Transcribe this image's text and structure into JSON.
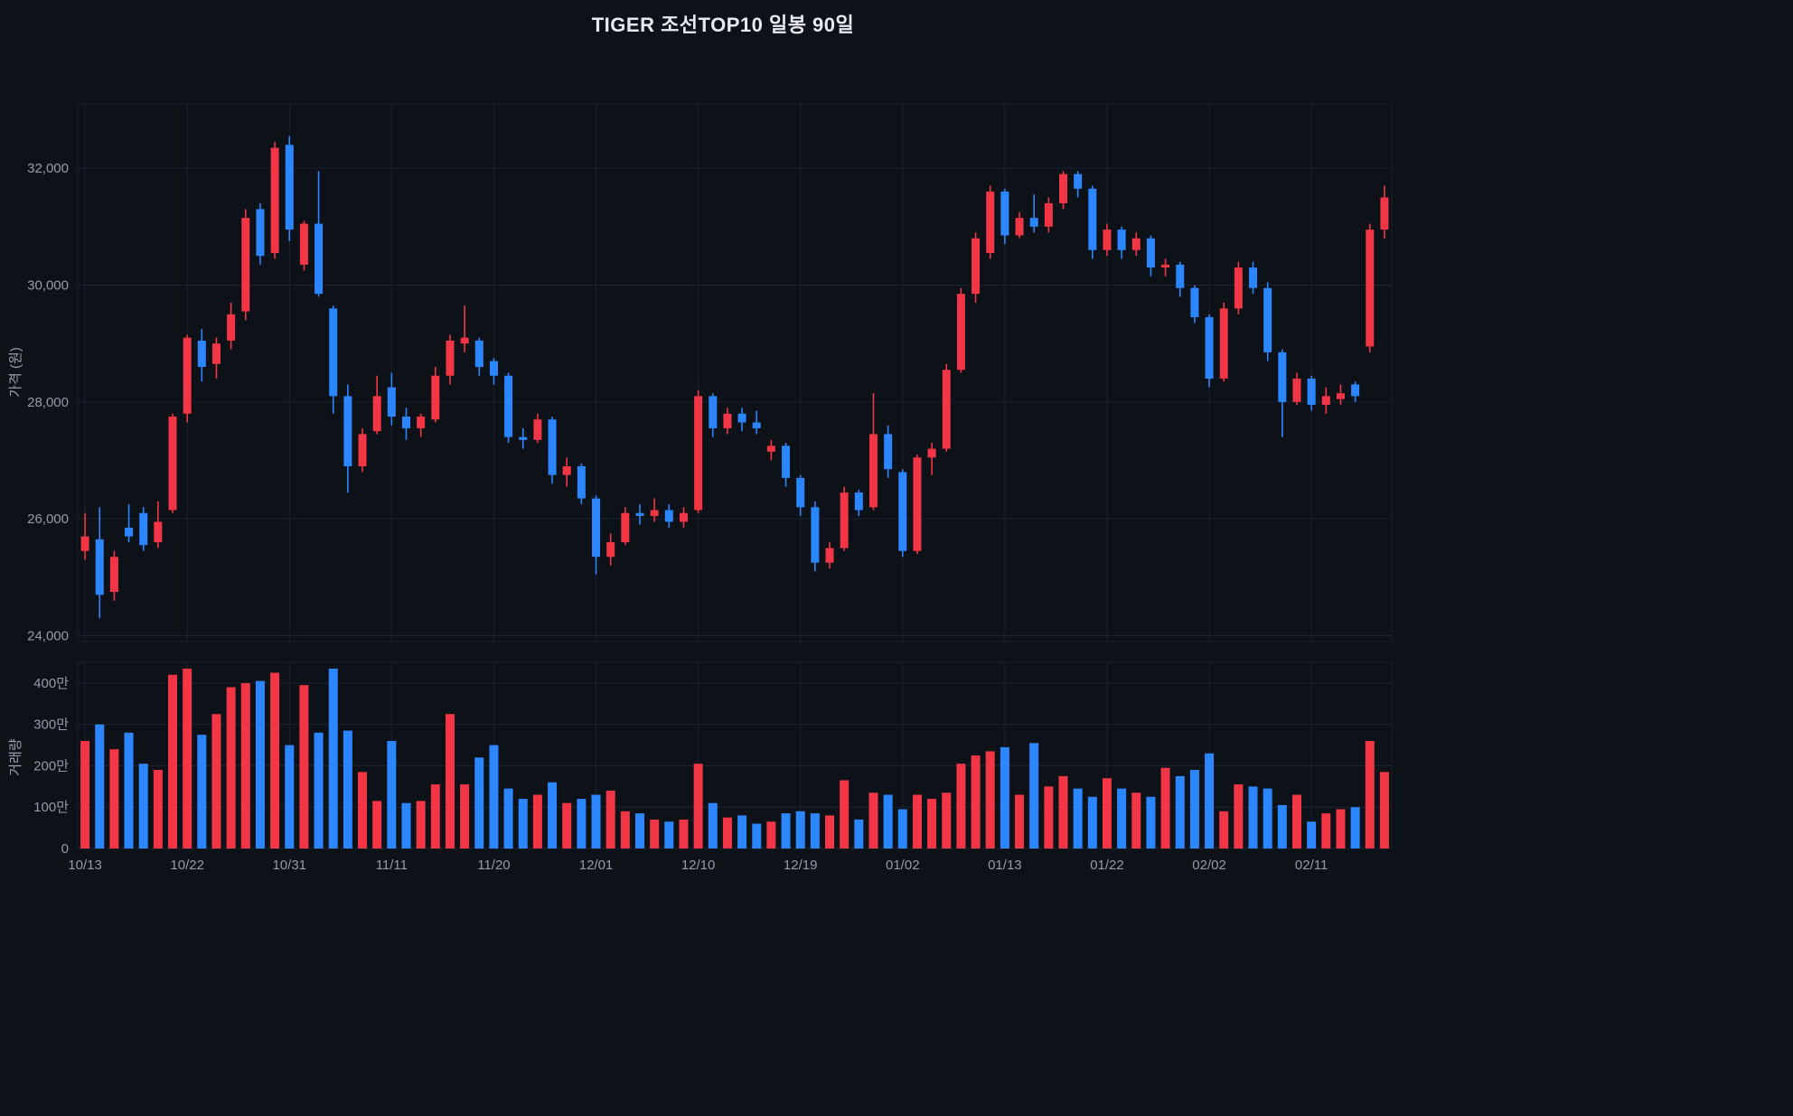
{
  "title": "TIGER 조선TOP10 일봉 90일",
  "colors": {
    "up": "#f23645",
    "down": "#2b86ff",
    "background": "#0d1118",
    "grid": "#1c2230",
    "panel_border": "#1a202c",
    "tick_text": "#949caa",
    "title_text": "#e8eaef"
  },
  "chart_data": {
    "type": "candlestick_with_volume",
    "title": "TIGER 조선TOP10 일봉 90일",
    "grid": true,
    "legend": "none",
    "price_axis": {
      "label": "가격 (원)",
      "tick_values": [
        24000,
        26000,
        28000,
        30000,
        32000
      ],
      "tick_labels": [
        "24,000",
        "26,000",
        "28,000",
        "30,000",
        "32,000"
      ],
      "range": [
        23900,
        33100
      ]
    },
    "volume_axis": {
      "label": "거래량",
      "tick_values": [
        0,
        1000000,
        2000000,
        3000000,
        4000000
      ],
      "tick_labels": [
        "0",
        "100만",
        "200만",
        "300만",
        "400만"
      ],
      "range": [
        0,
        4500000
      ]
    },
    "x_tick_labels": [
      "10/13",
      "10/22",
      "10/31",
      "11/11",
      "11/20",
      "12/01",
      "12/10",
      "12/19",
      "01/02",
      "01/13",
      "01/22",
      "02/02",
      "02/11"
    ],
    "x_tick_indices": [
      0,
      7,
      14,
      21,
      28,
      35,
      42,
      49,
      56,
      63,
      70,
      77,
      84
    ],
    "candle_fields": [
      "open",
      "high",
      "low",
      "close",
      "volume"
    ],
    "candles": [
      [
        25450,
        26100,
        25300,
        25700,
        2600000
      ],
      [
        25650,
        26200,
        24300,
        24700,
        3000000
      ],
      [
        24750,
        25450,
        24600,
        25350,
        2400000
      ],
      [
        25850,
        26250,
        25600,
        25700,
        2800000
      ],
      [
        26100,
        26200,
        25450,
        25550,
        2050000
      ],
      [
        25600,
        26300,
        25500,
        25950,
        1900000
      ],
      [
        26150,
        27800,
        26100,
        27750,
        4200000
      ],
      [
        27800,
        29150,
        27650,
        29100,
        4350000
      ],
      [
        29050,
        29250,
        28350,
        28600,
        2750000
      ],
      [
        28650,
        29100,
        28400,
        29000,
        3250000
      ],
      [
        29050,
        29700,
        28900,
        29500,
        3900000
      ],
      [
        29550,
        31300,
        29400,
        31150,
        4000000
      ],
      [
        31300,
        31400,
        30350,
        30500,
        4050000
      ],
      [
        30550,
        32450,
        30450,
        32350,
        4250000
      ],
      [
        32400,
        32550,
        30750,
        30950,
        2500000
      ],
      [
        30350,
        31100,
        30250,
        31050,
        3950000
      ],
      [
        31050,
        31950,
        29800,
        29850,
        2800000
      ],
      [
        29600,
        29650,
        27800,
        28100,
        4350000
      ],
      [
        28100,
        28300,
        26450,
        26900,
        2850000
      ],
      [
        26900,
        27550,
        26800,
        27450,
        1850000
      ],
      [
        27500,
        28450,
        27450,
        28100,
        1150000
      ],
      [
        28250,
        28500,
        27600,
        27750,
        2600000
      ],
      [
        27750,
        27900,
        27350,
        27550,
        1100000
      ],
      [
        27550,
        27800,
        27400,
        27750,
        1150000
      ],
      [
        27700,
        28600,
        27650,
        28450,
        1550000
      ],
      [
        28450,
        29150,
        28300,
        29050,
        3250000
      ],
      [
        29000,
        29650,
        28850,
        29100,
        1550000
      ],
      [
        29050,
        29100,
        28450,
        28600,
        2200000
      ],
      [
        28700,
        28750,
        28300,
        28450,
        2500000
      ],
      [
        28450,
        28500,
        27300,
        27400,
        1450000
      ],
      [
        27400,
        27550,
        27200,
        27350,
        1200000
      ],
      [
        27350,
        27800,
        27300,
        27700,
        1300000
      ],
      [
        27700,
        27750,
        26600,
        26750,
        1600000
      ],
      [
        26750,
        27050,
        26550,
        26900,
        1100000
      ],
      [
        26900,
        26950,
        26250,
        26350,
        1200000
      ],
      [
        26350,
        26400,
        25050,
        25350,
        1300000
      ],
      [
        25350,
        25750,
        25200,
        25600,
        1400000
      ],
      [
        25600,
        26200,
        25550,
        26100,
        900000
      ],
      [
        26100,
        26250,
        25900,
        26050,
        850000
      ],
      [
        26050,
        26350,
        25950,
        26150,
        700000
      ],
      [
        26150,
        26250,
        25850,
        25950,
        650000
      ],
      [
        25950,
        26200,
        25850,
        26100,
        700000
      ],
      [
        26150,
        28200,
        26100,
        28100,
        2050000
      ],
      [
        28100,
        28150,
        27400,
        27550,
        1100000
      ],
      [
        27550,
        27900,
        27450,
        27800,
        750000
      ],
      [
        27800,
        27900,
        27500,
        27650,
        800000
      ],
      [
        27650,
        27850,
        27450,
        27550,
        600000
      ],
      [
        27150,
        27350,
        27000,
        27250,
        650000
      ],
      [
        27250,
        27300,
        26550,
        26700,
        850000
      ],
      [
        26700,
        26750,
        26050,
        26200,
        900000
      ],
      [
        26200,
        26300,
        25100,
        25250,
        850000
      ],
      [
        25250,
        25600,
        25150,
        25500,
        800000
      ],
      [
        25500,
        26550,
        25450,
        26450,
        1650000
      ],
      [
        26450,
        26500,
        26050,
        26150,
        700000
      ],
      [
        26200,
        28150,
        26150,
        27450,
        1350000
      ],
      [
        27450,
        27600,
        26700,
        26850,
        1300000
      ],
      [
        26800,
        26850,
        25350,
        25450,
        950000
      ],
      [
        25450,
        27100,
        25400,
        27050,
        1300000
      ],
      [
        27050,
        27300,
        26750,
        27200,
        1200000
      ],
      [
        27200,
        28650,
        27150,
        28550,
        1350000
      ],
      [
        28550,
        29950,
        28500,
        29850,
        2050000
      ],
      [
        29850,
        30900,
        29700,
        30800,
        2250000
      ],
      [
        30550,
        31700,
        30450,
        31600,
        2350000
      ],
      [
        31600,
        31650,
        30700,
        30850,
        2450000
      ],
      [
        30850,
        31250,
        30800,
        31150,
        1300000
      ],
      [
        31150,
        31550,
        30900,
        31000,
        2550000
      ],
      [
        31000,
        31500,
        30900,
        31400,
        1500000
      ],
      [
        31400,
        31950,
        31300,
        31900,
        1750000
      ],
      [
        31900,
        31950,
        31500,
        31650,
        1450000
      ],
      [
        31650,
        31700,
        30450,
        30600,
        1250000
      ],
      [
        30600,
        31050,
        30500,
        30950,
        1700000
      ],
      [
        30950,
        31000,
        30450,
        30600,
        1450000
      ],
      [
        30600,
        30900,
        30500,
        30800,
        1350000
      ],
      [
        30800,
        30850,
        30150,
        30300,
        1250000
      ],
      [
        30300,
        30450,
        30150,
        30350,
        1950000
      ],
      [
        30350,
        30400,
        29800,
        29950,
        1750000
      ],
      [
        29950,
        30000,
        29350,
        29450,
        1900000
      ],
      [
        29450,
        29500,
        28250,
        28400,
        2300000
      ],
      [
        28400,
        29700,
        28350,
        29600,
        900000
      ],
      [
        29600,
        30400,
        29500,
        30300,
        1550000
      ],
      [
        30300,
        30400,
        29850,
        29950,
        1500000
      ],
      [
        29950,
        30050,
        28700,
        28850,
        1450000
      ],
      [
        28850,
        28900,
        27400,
        28000,
        1050000
      ],
      [
        28000,
        28500,
        27950,
        28400,
        1300000
      ],
      [
        28400,
        28450,
        27850,
        27950,
        650000
      ],
      [
        27950,
        28250,
        27800,
        28100,
        850000
      ],
      [
        28050,
        28300,
        27950,
        28150,
        950000
      ],
      [
        28300,
        28350,
        28000,
        28100,
        1000000
      ],
      [
        28950,
        31050,
        28850,
        30950,
        2600000
      ],
      [
        30950,
        31700,
        30800,
        31500,
        1850000
      ]
    ]
  }
}
